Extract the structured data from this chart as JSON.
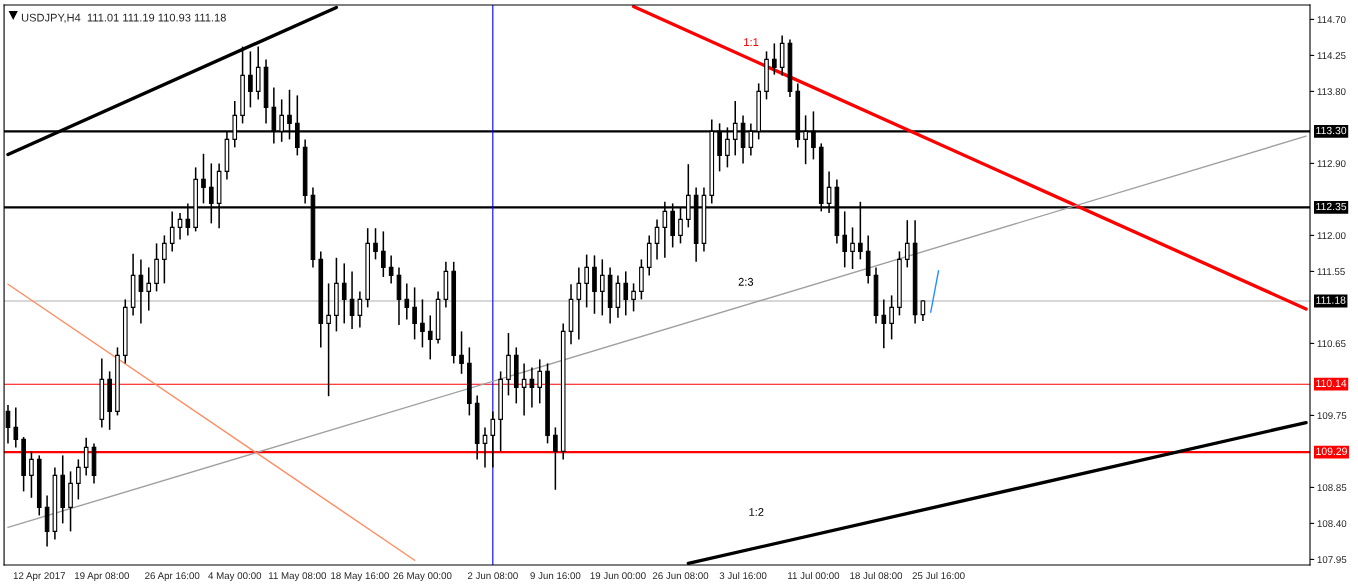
{
  "chart_data": {
    "type": "candlestick",
    "title": "USDJPY,H4  111.01 111.19 110.93 111.18",
    "color": "#000000",
    "categories": [
      null,
      null,
      null,
      null,
      "12 Apr 2017",
      null,
      null,
      null,
      null,
      null,
      null,
      null,
      "19 Apr 08:00",
      null,
      null,
      null,
      null,
      null,
      null,
      null,
      null,
      "26 Apr 16:00",
      null,
      null,
      null,
      null,
      null,
      null,
      null,
      "4 May 00:00",
      null,
      null,
      null,
      null,
      null,
      null,
      null,
      "11 May 08:00",
      null,
      null,
      null,
      null,
      null,
      null,
      null,
      "18 May 16:00",
      null,
      null,
      null,
      null,
      null,
      null,
      null,
      "26 May 00:00",
      null,
      null,
      null,
      null,
      null,
      null,
      null,
      null,
      "2 Jun 08:00",
      null,
      null,
      null,
      null,
      null,
      null,
      null,
      "9 Jun 16:00",
      null,
      null,
      null,
      null,
      null,
      null,
      null,
      "19 Jun 00:00",
      null,
      null,
      null,
      null,
      null,
      null,
      null,
      "26 Jun 08:00",
      null,
      null,
      null,
      null,
      null,
      null,
      null,
      "3 Jul 16:00",
      null,
      null,
      null,
      null,
      null,
      null,
      null,
      null,
      "11 Jul 00:00",
      null,
      null,
      null,
      null,
      null,
      null,
      null,
      "18 Jul 08:00",
      null,
      null,
      null,
      null,
      null,
      null,
      null,
      "25 Jul 16:00",
      null,
      null,
      null,
      null,
      null,
      null,
      null,
      null,
      null,
      null,
      null,
      null,
      null,
      null,
      null,
      null,
      null,
      null,
      null,
      null,
      null,
      null,
      null,
      null,
      null,
      null,
      null,
      null,
      null,
      null,
      null,
      null,
      null,
      null,
      null,
      null,
      null,
      null,
      null,
      null,
      null,
      null,
      null,
      null,
      null,
      null,
      null
    ],
    "ohlc": [
      [
        109.8,
        109.88,
        109.4,
        109.6
      ],
      [
        109.6,
        109.85,
        109.35,
        109.45
      ],
      [
        109.45,
        109.48,
        108.8,
        109.0
      ],
      [
        109.0,
        109.3,
        108.72,
        109.2
      ],
      [
        109.2,
        109.25,
        108.5,
        108.6
      ],
      [
        108.6,
        108.75,
        108.11,
        108.3
      ],
      [
        108.3,
        109.1,
        108.2,
        109.0
      ],
      [
        109.0,
        109.25,
        108.4,
        108.6
      ],
      [
        108.6,
        109.05,
        108.3,
        108.9
      ],
      [
        108.9,
        109.2,
        108.7,
        109.1
      ],
      [
        109.1,
        109.47,
        109.0,
        109.35
      ],
      [
        109.35,
        109.4,
        108.9,
        109.0
      ],
      [
        109.7,
        110.46,
        109.6,
        110.2
      ],
      [
        110.2,
        110.3,
        109.57,
        109.8
      ],
      [
        109.8,
        110.6,
        109.75,
        110.5
      ],
      [
        110.5,
        111.2,
        110.4,
        111.1
      ],
      [
        111.1,
        111.77,
        111.0,
        111.5
      ],
      [
        111.5,
        111.7,
        110.9,
        111.3
      ],
      [
        111.3,
        111.6,
        111.06,
        111.4
      ],
      [
        111.4,
        111.9,
        111.3,
        111.7
      ],
      [
        111.7,
        112.0,
        111.4,
        111.9
      ],
      [
        111.9,
        112.3,
        111.8,
        112.1
      ],
      [
        112.1,
        112.28,
        111.95,
        112.2
      ],
      [
        112.2,
        112.4,
        112.0,
        112.1
      ],
      [
        112.1,
        112.85,
        112.05,
        112.7
      ],
      [
        112.7,
        113.02,
        112.4,
        112.6
      ],
      [
        112.6,
        112.9,
        112.15,
        112.4
      ],
      [
        112.4,
        112.9,
        112.09,
        112.8
      ],
      [
        112.8,
        113.3,
        112.7,
        113.2
      ],
      [
        113.2,
        113.68,
        113.1,
        113.5
      ],
      [
        113.5,
        114.36,
        113.4,
        114.0
      ],
      [
        114.0,
        114.3,
        113.6,
        113.8
      ],
      [
        113.8,
        114.36,
        113.7,
        114.1
      ],
      [
        114.1,
        114.2,
        113.4,
        113.6
      ],
      [
        113.6,
        113.85,
        113.15,
        113.3
      ],
      [
        113.3,
        113.7,
        113.17,
        113.5
      ],
      [
        113.5,
        113.82,
        113.2,
        113.4
      ],
      [
        113.4,
        113.75,
        113.0,
        113.1
      ],
      [
        113.1,
        113.2,
        112.4,
        112.5
      ],
      [
        112.5,
        112.6,
        111.6,
        111.7
      ],
      [
        111.7,
        111.8,
        110.6,
        110.9
      ],
      [
        110.9,
        111.4,
        109.99,
        111.0
      ],
      [
        111.0,
        111.72,
        110.8,
        111.4
      ],
      [
        111.4,
        111.65,
        110.9,
        111.2
      ],
      [
        111.2,
        111.55,
        110.83,
        111.0
      ],
      [
        111.0,
        111.3,
        110.85,
        111.2
      ],
      [
        111.2,
        112.09,
        111.1,
        111.9
      ],
      [
        111.9,
        112.09,
        111.7,
        111.8
      ],
      [
        111.8,
        112.05,
        111.48,
        111.6
      ],
      [
        111.6,
        111.75,
        111.4,
        111.5
      ],
      [
        111.5,
        111.6,
        110.88,
        111.2
      ],
      [
        111.2,
        111.4,
        110.95,
        111.1
      ],
      [
        111.1,
        111.35,
        110.7,
        110.9
      ],
      [
        110.9,
        111.2,
        110.6,
        110.8
      ],
      [
        110.8,
        111.0,
        110.45,
        110.7
      ],
      [
        110.7,
        111.3,
        110.65,
        111.2
      ],
      [
        111.2,
        111.67,
        111.1,
        111.55
      ],
      [
        111.55,
        111.67,
        110.4,
        110.5
      ],
      [
        110.5,
        110.8,
        110.27,
        110.4
      ],
      [
        110.4,
        110.6,
        109.75,
        109.9
      ],
      [
        109.9,
        110.0,
        109.2,
        109.4
      ],
      [
        109.4,
        109.6,
        109.1,
        109.5
      ],
      [
        109.5,
        109.8,
        109.1,
        109.7
      ],
      [
        109.7,
        110.3,
        109.3,
        110.2
      ],
      [
        110.2,
        110.78,
        110.0,
        110.5
      ],
      [
        110.5,
        110.6,
        109.9,
        110.1
      ],
      [
        110.1,
        110.4,
        109.75,
        110.2
      ],
      [
        110.2,
        110.35,
        109.85,
        110.1
      ],
      [
        110.1,
        110.45,
        109.9,
        110.3
      ],
      [
        110.3,
        110.4,
        109.4,
        109.5
      ],
      [
        109.5,
        109.6,
        108.82,
        109.3
      ],
      [
        109.3,
        110.9,
        109.2,
        110.8
      ],
      [
        110.8,
        111.39,
        110.64,
        111.2
      ],
      [
        111.2,
        111.6,
        110.7,
        111.4
      ],
      [
        111.4,
        111.76,
        111.1,
        111.6
      ],
      [
        111.6,
        111.75,
        111.02,
        111.3
      ],
      [
        111.3,
        111.7,
        111.0,
        111.5
      ],
      [
        111.5,
        111.6,
        110.9,
        111.1
      ],
      [
        111.1,
        111.5,
        110.97,
        111.4
      ],
      [
        111.4,
        111.55,
        111.0,
        111.2
      ],
      [
        111.2,
        111.4,
        111.05,
        111.3
      ],
      [
        111.3,
        111.7,
        111.2,
        111.6
      ],
      [
        111.6,
        112.0,
        111.5,
        111.9
      ],
      [
        111.9,
        112.2,
        111.7,
        112.1
      ],
      [
        112.1,
        112.42,
        111.72,
        112.3
      ],
      [
        112.3,
        112.4,
        111.85,
        112.0
      ],
      [
        112.0,
        112.35,
        111.9,
        112.2
      ],
      [
        112.2,
        112.89,
        112.1,
        112.5
      ],
      [
        112.5,
        112.6,
        111.67,
        111.9
      ],
      [
        111.9,
        112.6,
        111.8,
        112.5
      ],
      [
        112.5,
        113.45,
        112.4,
        113.3
      ],
      [
        113.3,
        113.4,
        112.8,
        113.0
      ],
      [
        113.0,
        113.35,
        112.85,
        113.2
      ],
      [
        113.2,
        113.68,
        113.0,
        113.4
      ],
      [
        113.4,
        113.5,
        112.9,
        113.1
      ],
      [
        113.1,
        113.4,
        113.0,
        113.3
      ],
      [
        113.3,
        113.9,
        113.2,
        113.8
      ],
      [
        113.8,
        114.3,
        113.7,
        114.2
      ],
      [
        114.2,
        114.4,
        114.01,
        114.1
      ],
      [
        114.1,
        114.5,
        114.0,
        114.4
      ],
      [
        114.4,
        114.45,
        113.73,
        113.8
      ],
      [
        113.8,
        113.9,
        113.1,
        113.2
      ],
      [
        113.2,
        113.5,
        112.89,
        113.3
      ],
      [
        113.3,
        113.55,
        112.95,
        113.1
      ],
      [
        113.1,
        113.15,
        112.3,
        112.4
      ],
      [
        112.4,
        112.8,
        112.28,
        112.6
      ],
      [
        112.6,
        112.7,
        111.9,
        112.0
      ],
      [
        112.0,
        112.3,
        111.6,
        111.8
      ],
      [
        111.8,
        112.1,
        111.58,
        111.9
      ],
      [
        111.9,
        112.42,
        111.7,
        111.8
      ],
      [
        111.8,
        112.0,
        111.4,
        111.5
      ],
      [
        111.5,
        111.6,
        110.9,
        111.0
      ],
      [
        111.0,
        111.2,
        110.59,
        110.9
      ],
      [
        110.9,
        111.25,
        110.7,
        111.1
      ],
      [
        111.1,
        111.8,
        111.0,
        111.7
      ],
      [
        111.7,
        112.19,
        111.6,
        111.9
      ],
      [
        111.9,
        112.19,
        110.9,
        111.01
      ],
      [
        111.01,
        111.19,
        110.93,
        111.18
      ],
      null,
      null,
      null,
      null,
      null,
      null,
      null,
      null,
      null,
      null,
      null,
      null,
      null,
      null,
      null,
      null,
      null,
      null,
      null,
      null,
      null,
      null,
      null,
      null,
      null,
      null,
      null,
      null,
      null,
      null,
      null,
      null,
      null,
      null,
      null,
      null,
      null,
      null,
      null,
      null,
      null,
      null,
      null,
      null,
      null,
      null,
      null,
      null,
      null
    ],
    "series": [
      {
        "type": "line",
        "color": "#000000",
        "values": [
          113.01,
          null,
          null,
          null,
          null,
          null,
          null,
          null,
          null,
          null,
          null,
          null,
          null,
          null,
          null,
          null,
          null,
          null,
          null,
          null,
          null,
          null,
          null,
          null,
          null,
          null,
          null,
          null,
          null,
          null,
          null,
          null,
          null,
          null,
          null,
          null,
          null,
          null,
          null,
          null,
          null,
          null,
          114.85,
          null,
          null,
          null,
          null,
          null,
          null,
          null,
          null,
          null,
          null,
          null,
          null,
          null,
          null,
          null,
          null,
          null,
          null,
          null,
          null,
          null,
          null,
          null,
          null,
          null,
          null,
          null,
          null,
          null,
          null,
          null,
          null,
          null,
          null,
          null,
          null,
          null,
          null,
          null,
          null,
          null,
          null,
          null,
          null,
          null,
          null,
          null,
          null,
          null,
          null,
          null,
          null,
          null,
          null,
          null,
          null,
          null,
          null,
          null,
          null,
          null,
          null,
          null,
          null,
          null,
          null,
          null,
          null,
          null,
          null,
          null,
          null,
          null,
          null,
          null,
          null,
          null,
          null,
          null,
          null,
          null,
          null,
          null,
          null,
          null,
          null,
          null,
          null,
          null,
          null,
          null,
          null,
          null,
          null,
          null,
          null,
          null,
          null,
          null,
          null,
          null,
          null,
          null,
          null,
          null,
          null,
          null,
          null,
          null,
          null,
          null,
          null,
          null,
          null,
          null,
          null,
          null,
          null,
          null,
          null,
          null,
          null,
          null,
          null
        ]
      },
      {
        "type": "line",
        "color": "#ff0000",
        "values": [
          null,
          null,
          null,
          null,
          null,
          null,
          null,
          null,
          null,
          null,
          null,
          null,
          null,
          null,
          null,
          null,
          null,
          null,
          null,
          null,
          null,
          null,
          null,
          null,
          null,
          null,
          null,
          null,
          null,
          null,
          null,
          null,
          null,
          null,
          null,
          null,
          null,
          null,
          null,
          null,
          null,
          null,
          null,
          null,
          null,
          null,
          null,
          null,
          null,
          null,
          null,
          null,
          null,
          null,
          null,
          null,
          null,
          null,
          null,
          null,
          null,
          null,
          null,
          null,
          null,
          null,
          null,
          null,
          null,
          null,
          null,
          null,
          null,
          null,
          null,
          null,
          null,
          null,
          null,
          null,
          114.86,
          null,
          null,
          null,
          null,
          null,
          null,
          null,
          null,
          null,
          null,
          null,
          null,
          null,
          null,
          null,
          null,
          null,
          null,
          null,
          null,
          null,
          null,
          null,
          null,
          null,
          null,
          null,
          null,
          null,
          null,
          null,
          null,
          null,
          null,
          null,
          null,
          null,
          null,
          null,
          null,
          null,
          null,
          null,
          null,
          null,
          null,
          null,
          null,
          null,
          null,
          null,
          null,
          null,
          null,
          null,
          null,
          null,
          null,
          null,
          null,
          null,
          null,
          null,
          null,
          null,
          null,
          null,
          null,
          null,
          null,
          null,
          null,
          null,
          null,
          null,
          null,
          null,
          null,
          null,
          null,
          null,
          null,
          null,
          null,
          null,
          111.08
        ]
      },
      {
        "type": "line",
        "color": "#a0a0a0",
        "values": [
          108.35,
          null,
          null,
          null,
          null,
          null,
          null,
          null,
          null,
          null,
          null,
          null,
          null,
          null,
          null,
          null,
          null,
          null,
          null,
          null,
          null,
          null,
          null,
          null,
          null,
          null,
          null,
          null,
          null,
          null,
          null,
          null,
          null,
          null,
          null,
          null,
          null,
          null,
          null,
          null,
          null,
          null,
          null,
          null,
          null,
          null,
          null,
          null,
          null,
          null,
          null,
          null,
          null,
          null,
          null,
          null,
          null,
          null,
          null,
          null,
          null,
          null,
          null,
          null,
          null,
          null,
          null,
          null,
          null,
          null,
          null,
          null,
          null,
          null,
          null,
          null,
          null,
          null,
          null,
          null,
          null,
          null,
          null,
          null,
          null,
          null,
          null,
          null,
          null,
          null,
          null,
          null,
          null,
          null,
          null,
          null,
          null,
          null,
          null,
          null,
          null,
          null,
          null,
          null,
          null,
          null,
          null,
          null,
          null,
          null,
          null,
          null,
          null,
          null,
          null,
          null,
          null,
          null,
          null,
          null,
          null,
          null,
          null,
          null,
          null,
          null,
          null,
          null,
          null,
          null,
          null,
          null,
          null,
          null,
          null,
          null,
          null,
          null,
          null,
          null,
          null,
          null,
          null,
          null,
          null,
          null,
          null,
          null,
          null,
          null,
          null,
          null,
          null,
          null,
          null,
          null,
          null,
          null,
          null,
          null,
          null,
          null,
          null,
          null,
          null,
          null,
          113.24
        ]
      },
      {
        "type": "line",
        "color": "#ff8c60",
        "values": [
          111.39,
          null,
          null,
          null,
          null,
          null,
          null,
          null,
          null,
          null,
          null,
          null,
          null,
          null,
          null,
          null,
          null,
          null,
          null,
          null,
          null,
          null,
          null,
          null,
          null,
          null,
          null,
          null,
          null,
          null,
          null,
          null,
          null,
          null,
          null,
          null,
          null,
          null,
          null,
          null,
          null,
          null,
          null,
          null,
          null,
          null,
          null,
          null,
          null,
          null,
          null,
          null,
          107.94,
          null,
          null,
          null,
          null,
          null,
          null,
          null,
          null,
          null,
          null,
          null,
          null,
          null,
          null,
          null,
          null,
          null,
          null,
          null,
          null,
          null,
          null,
          null,
          null,
          null,
          null,
          null,
          null,
          null,
          null,
          null,
          null,
          null,
          null,
          null,
          null,
          null,
          null,
          null,
          null,
          null,
          null,
          null,
          null,
          null,
          null,
          null,
          null,
          null,
          null,
          null,
          null,
          null,
          null,
          null,
          null,
          null,
          null,
          null,
          null,
          null,
          null,
          null,
          null,
          null,
          null,
          null,
          null,
          null,
          null,
          null,
          null,
          null,
          null,
          null,
          null,
          null,
          null,
          null,
          null,
          null,
          null,
          null,
          null,
          null,
          null,
          null,
          null,
          null,
          null,
          null,
          null,
          null,
          null,
          null,
          null,
          null,
          null,
          null,
          null,
          null,
          null,
          null,
          null,
          null,
          null,
          null,
          null,
          null,
          null,
          null,
          null,
          null,
          null
        ]
      },
      {
        "type": "line",
        "color": "#000000",
        "values": [
          null,
          null,
          null,
          null,
          null,
          null,
          null,
          null,
          null,
          null,
          null,
          null,
          null,
          null,
          null,
          null,
          null,
          null,
          null,
          null,
          null,
          null,
          null,
          null,
          null,
          null,
          null,
          null,
          null,
          null,
          null,
          null,
          null,
          null,
          null,
          null,
          null,
          null,
          null,
          null,
          null,
          null,
          null,
          null,
          null,
          null,
          null,
          null,
          null,
          null,
          null,
          null,
          null,
          null,
          null,
          null,
          null,
          null,
          null,
          null,
          null,
          null,
          null,
          null,
          null,
          null,
          null,
          null,
          null,
          null,
          null,
          null,
          null,
          null,
          null,
          null,
          null,
          null,
          null,
          null,
          null,
          null,
          null,
          null,
          null,
          null,
          null,
          107.9,
          null,
          null,
          null,
          null,
          null,
          null,
          null,
          null,
          null,
          null,
          null,
          null,
          null,
          null,
          null,
          null,
          null,
          null,
          null,
          null,
          null,
          null,
          null,
          null,
          null,
          null,
          null,
          null,
          null,
          null,
          null,
          null,
          null,
          null,
          null,
          null,
          null,
          null,
          null,
          null,
          null,
          null,
          null,
          null,
          null,
          null,
          null,
          null,
          null,
          null,
          null,
          null,
          null,
          null,
          null,
          null,
          null,
          null,
          null,
          null,
          null,
          null,
          null,
          null,
          null,
          null,
          null,
          null,
          null,
          null,
          null,
          null,
          null,
          null,
          null,
          null,
          null,
          null,
          109.66
        ]
      },
      {
        "type": "line",
        "color": "#1e90ff",
        "values": [
          null,
          null,
          null,
          null,
          null,
          null,
          null,
          null,
          null,
          null,
          null,
          null,
          null,
          null,
          null,
          null,
          null,
          null,
          null,
          null,
          null,
          null,
          null,
          null,
          null,
          null,
          null,
          null,
          null,
          null,
          null,
          null,
          null,
          null,
          null,
          null,
          null,
          null,
          null,
          null,
          null,
          null,
          null,
          null,
          null,
          null,
          null,
          null,
          null,
          null,
          null,
          null,
          null,
          null,
          null,
          null,
          null,
          null,
          null,
          null,
          null,
          null,
          null,
          null,
          null,
          null,
          null,
          null,
          null,
          null,
          null,
          null,
          null,
          null,
          null,
          null,
          null,
          null,
          null,
          null,
          null,
          null,
          null,
          null,
          null,
          null,
          null,
          null,
          null,
          null,
          null,
          null,
          null,
          null,
          null,
          null,
          null,
          null,
          null,
          null,
          null,
          null,
          null,
          null,
          null,
          null,
          null,
          null,
          null,
          null,
          null,
          null,
          null,
          null,
          null,
          null,
          null,
          null,
          111.04,
          111.56,
          null,
          null,
          null,
          null,
          null,
          null,
          null,
          null,
          null,
          null,
          null,
          null,
          null,
          null,
          null,
          null,
          null,
          null,
          null,
          null,
          null,
          null,
          null,
          null,
          null,
          null,
          null,
          null,
          null,
          null,
          null,
          null,
          null,
          null,
          null,
          null,
          null,
          null,
          null,
          null,
          null,
          null,
          null,
          null,
          null,
          null,
          null
        ]
      }
    ],
    "ref_lines": [
      {
        "axis": "y",
        "value": 113.3,
        "label": "113.30",
        "color": "#000000"
      },
      {
        "axis": "y",
        "value": 112.35,
        "label": "112.35",
        "color": "#000000"
      },
      {
        "axis": "y",
        "value": 111.18,
        "label": "111.18",
        "color": "#b0b0b0"
      },
      {
        "axis": "y",
        "value": 110.14,
        "label": "110.14",
        "color": "#ff0000"
      },
      {
        "axis": "y",
        "value": 109.29,
        "label": "109.29",
        "color": "#ff0000"
      },
      {
        "axis": "x",
        "value": "2 Jun 08:00",
        "color": "#0000ff"
      }
    ],
    "annotations": [
      "1:1",
      "2:3",
      "1:2"
    ],
    "ylim": [
      107.88,
      114.88
    ],
    "yticks": [
      {
        "value": 114.7,
        "label": "114.70"
      },
      {
        "value": 114.25,
        "label": "114.25"
      },
      {
        "value": 113.8,
        "label": "113.80"
      },
      {
        "value": 112.9,
        "label": "112.90"
      },
      {
        "value": 112.0,
        "label": "112.00"
      },
      {
        "value": 111.55,
        "label": "111.55"
      },
      {
        "value": 110.65,
        "label": "110.65"
      },
      {
        "value": 109.75,
        "label": "109.75"
      },
      {
        "value": 108.85,
        "label": "108.85"
      },
      {
        "value": 108.4,
        "label": "108.40"
      },
      {
        "value": 107.95,
        "label": "107.95"
      }
    ]
  }
}
